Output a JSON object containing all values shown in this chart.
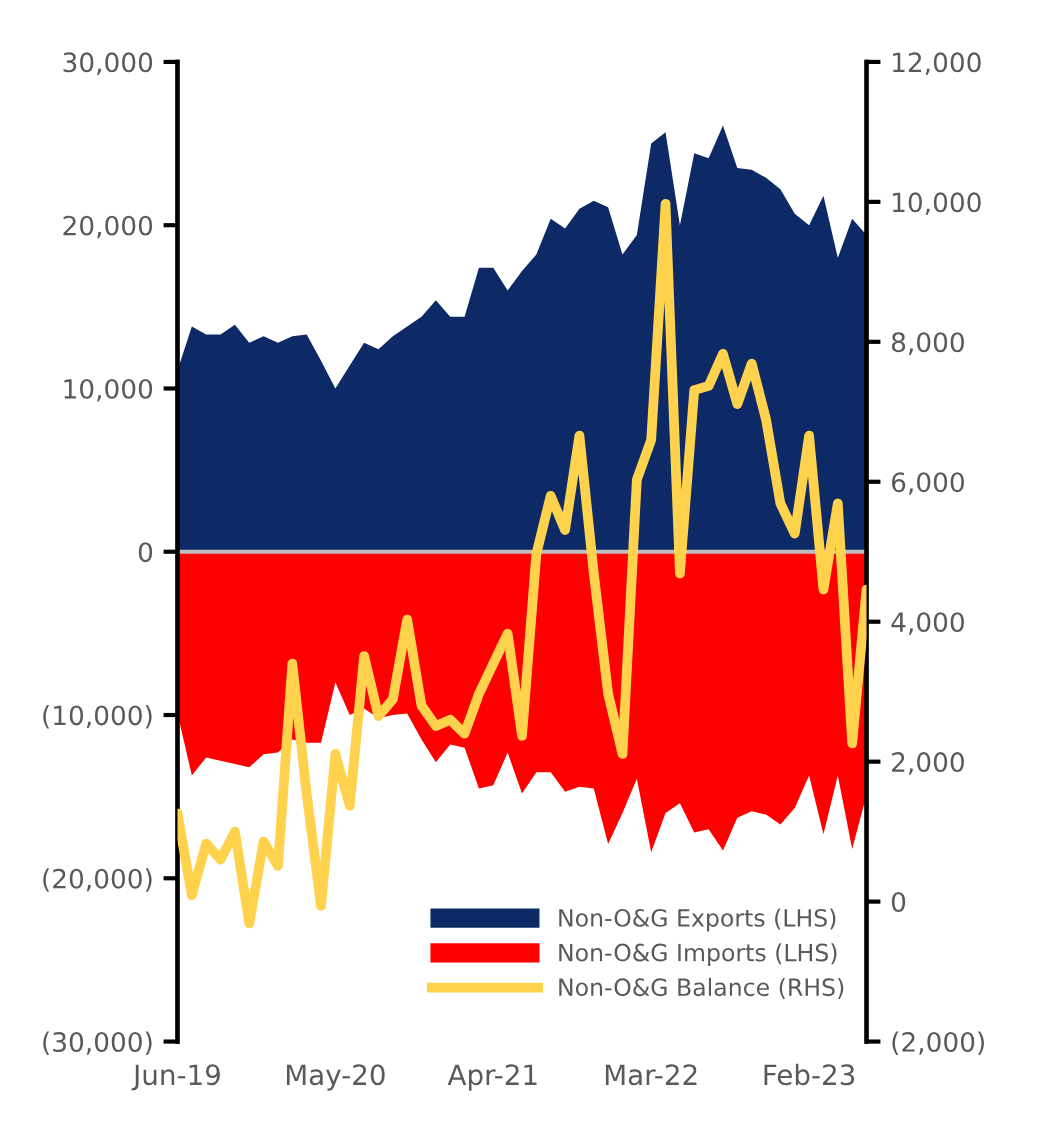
{
  "chart_data": {
    "type": "area",
    "categories": [
      "Jun-19",
      null,
      null,
      null,
      null,
      null,
      null,
      null,
      null,
      null,
      null,
      "May-20",
      null,
      null,
      null,
      null,
      null,
      null,
      null,
      null,
      null,
      null,
      "Apr-21",
      null,
      null,
      null,
      null,
      null,
      null,
      null,
      null,
      null,
      null,
      "Mar-22",
      null,
      null,
      null,
      null,
      null,
      null,
      null,
      null,
      null,
      null,
      "Feb-23",
      null,
      null,
      null,
      null
    ],
    "series": [
      {
        "name": "Non-O&G Exports (LHS)",
        "color": "#0d2a66",
        "values": [
          11100,
          13800,
          13300,
          13300,
          13900,
          12800,
          13200,
          12800,
          13200,
          13300,
          11700,
          10000,
          11400,
          12800,
          12400,
          13200,
          13800,
          14400,
          15400,
          14400,
          14400,
          17400,
          17400,
          16000,
          17200,
          18200,
          20400,
          19800,
          21000,
          21500,
          21100,
          18200,
          19400,
          25000,
          25700,
          20000,
          24400,
          24100,
          26100,
          23500,
          23400,
          22900,
          22200,
          20700,
          20000,
          21800,
          18000,
          20400,
          19400
        ]
      },
      {
        "name": "Non-O&G Imports (LHS)",
        "color": "#ff0000",
        "values": [
          -9900,
          -13700,
          -12600,
          -12800,
          -13000,
          -13200,
          -12400,
          -12300,
          -11500,
          -11700,
          -11700,
          -8000,
          -10000,
          -9600,
          -10200,
          -10000,
          -9900,
          -11500,
          -12900,
          -11800,
          -12000,
          -14500,
          -14300,
          -12300,
          -14800,
          -13500,
          -13500,
          -14700,
          -14400,
          -14500,
          -17900,
          -16000,
          -13900,
          -18400,
          -16000,
          -15400,
          -17200,
          -17000,
          -18300,
          -16300,
          -15900,
          -16100,
          -16700,
          -15700,
          -13700,
          -17300,
          -13700,
          -18200,
          -14900
        ]
      },
      {
        "name": "Non-O&G Balance (RHS)",
        "type": "line",
        "axis": "y2",
        "color": "#ffd24d",
        "values": [
          1260,
          90,
          830,
          600,
          1000,
          -310,
          860,
          510,
          3400,
          1540,
          -60,
          2110,
          1370,
          3510,
          2650,
          2890,
          4030,
          2800,
          2510,
          2600,
          2400,
          2970,
          3400,
          3830,
          2370,
          4970,
          5800,
          5310,
          6660,
          4690,
          2970,
          2110,
          6030,
          6600,
          9970,
          4690,
          7310,
          7370,
          7830,
          7110,
          7690,
          6890,
          5690,
          5260,
          6660,
          4460,
          5690,
          2260,
          4460
        ]
      }
    ],
    "ylim": [
      -30000,
      30000
    ],
    "yticks": [
      {
        "value": -30000,
        "label": "(30,000)"
      },
      {
        "value": -20000,
        "label": "(20,000)"
      },
      {
        "value": -10000,
        "label": "(10,000)"
      },
      0,
      {
        "value": 10000,
        "label": "10,000"
      },
      {
        "value": 20000,
        "label": "20,000"
      },
      {
        "value": 30000,
        "label": "30,000"
      }
    ],
    "y2lim": [
      -2000,
      12000
    ],
    "y2ticks": [
      {
        "value": -2000,
        "label": "(2,000)"
      },
      0,
      {
        "value": 2000,
        "label": "2,000"
      },
      {
        "value": 4000,
        "label": "4,000"
      },
      {
        "value": 6000,
        "label": "6,000"
      },
      {
        "value": 8000,
        "label": "8,000"
      },
      {
        "value": 10000,
        "label": "10,000"
      },
      {
        "value": 12000,
        "label": "12,000"
      }
    ],
    "ref_lines": [
      {
        "axis": "y",
        "value": 0,
        "color": "#bfbfbf"
      }
    ],
    "legend": "bottom right",
    "grid": false
  }
}
